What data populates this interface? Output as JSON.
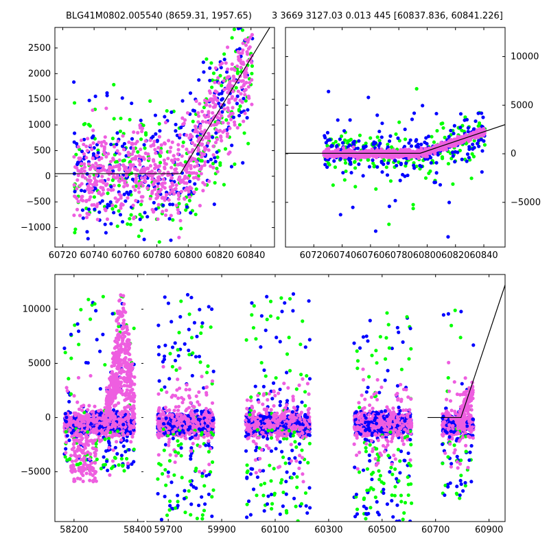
{
  "header": {
    "title_left": "BLG41M0802.005540 (8659.31, 1957.65)",
    "title_right": "3 3669 3127.03 0.013 445 [60837.836, 60841.226]"
  },
  "colors": {
    "green": "#00ff00",
    "blue": "#0000ff",
    "magenta": "#ee5ee0",
    "line": "#000000"
  },
  "chart_data": [
    {
      "type": "scatter",
      "panel": "top-left",
      "xlim": [
        60715,
        60855
      ],
      "ylim": [
        -1380,
        2900
      ],
      "xticks": [
        60720,
        60740,
        60760,
        60780,
        60800,
        60820,
        60840
      ],
      "yticks": [
        -1000,
        -500,
        0,
        500,
        1000,
        1500,
        2000,
        2500
      ],
      "ytick_side": "left",
      "model": {
        "x": [
          60715,
          60795,
          60852
        ],
        "y": [
          50,
          50,
          2900
        ]
      },
      "series": [
        {
          "color": "green",
          "x": [
            60727,
            60810,
            60841
          ],
          "y": [
            -1300,
            2800,
            2800
          ],
          "count": 240
        },
        {
          "color": "blue",
          "x": [
            60727,
            60810,
            60841
          ],
          "y": [
            -1300,
            2800,
            2800
          ],
          "count": 280
        },
        {
          "color": "magenta",
          "x": [
            60727,
            60810,
            60841
          ],
          "y": [
            -1100,
            1700,
            2700
          ],
          "count": 720
        }
      ]
    },
    {
      "type": "scatter",
      "panel": "top-right",
      "xlim": [
        60700,
        60855
      ],
      "ylim": [
        -9600,
        13000
      ],
      "xticks": [
        60720,
        60740,
        60760,
        60780,
        60800,
        60820,
        60840
      ],
      "yticks": [
        -5000,
        0,
        5000,
        10000
      ],
      "ytick_side": "right",
      "model": {
        "x": [
          60700,
          60795,
          60855
        ],
        "y": [
          50,
          50,
          3000
        ]
      },
      "series": [
        {
          "color": "green",
          "x": [
            60727,
            60800,
            60841
          ],
          "y": [
            -7300,
            10400,
            10400
          ],
          "count": 220
        },
        {
          "color": "blue",
          "x": [
            60727,
            60800,
            60841
          ],
          "y": [
            -9400,
            11000,
            11000
          ],
          "count": 260
        },
        {
          "color": "magenta",
          "x": [
            60727,
            60800,
            60841
          ],
          "y": [
            -1200,
            2500,
            3500
          ],
          "count": 900
        }
      ]
    },
    {
      "type": "scatter",
      "panel": "bottom",
      "ylim": [
        -9600,
        13200
      ],
      "yticks": [
        -5000,
        0,
        5000,
        10000
      ],
      "ytick_side": "left",
      "segments": [
        {
          "xlim": [
            58140,
            58420
          ],
          "xticks": [
            58200,
            58400
          ]
        },
        {
          "xlim": [
            59620,
            60960
          ],
          "xticks": [
            59700,
            59900,
            60100,
            60300,
            60500,
            60700,
            60900
          ]
        }
      ],
      "seasons": [
        {
          "x": [
            58170,
            58390
          ],
          "ylow": -5000,
          "yhigh": 12500,
          "flare": true
        },
        {
          "x": [
            59660,
            59870
          ],
          "ylow": -9600,
          "yhigh": 13000,
          "flare": false
        },
        {
          "x": [
            59990,
            60230
          ],
          "ylow": -9600,
          "yhigh": 13000,
          "flare": false
        },
        {
          "x": [
            60395,
            60610
          ],
          "ylow": -9600,
          "yhigh": 11500,
          "flare": false
        },
        {
          "x": [
            60725,
            60842
          ],
          "ylow": -7500,
          "yhigh": 11000,
          "flare": false
        }
      ],
      "model": {
        "x": [
          60670,
          60795,
          60965
        ],
        "y": [
          0,
          0,
          12600
        ]
      }
    }
  ]
}
